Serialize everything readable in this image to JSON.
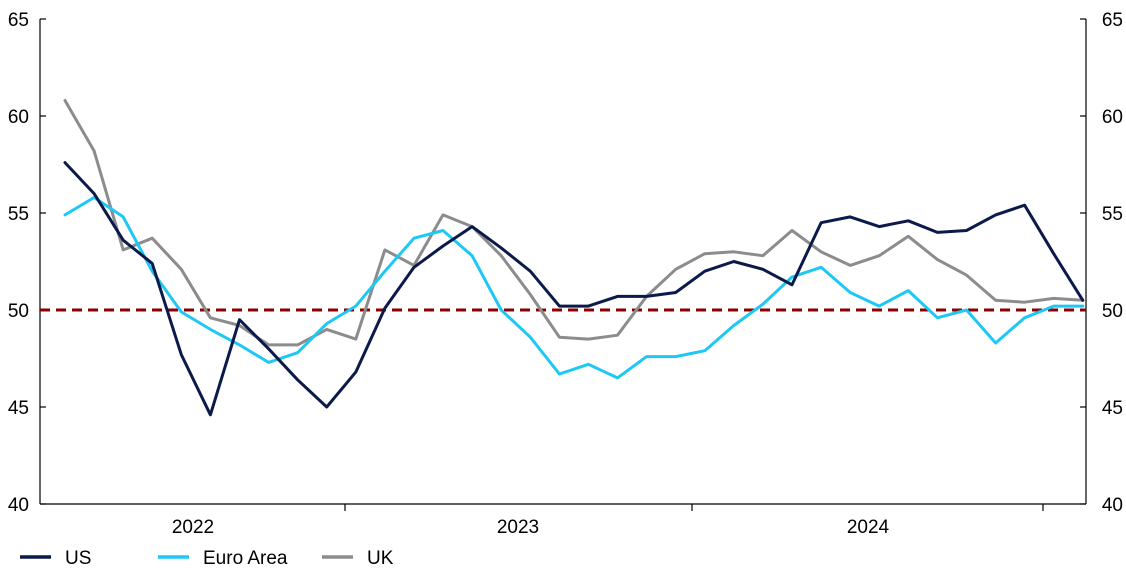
{
  "chart_data": {
    "type": "line",
    "title": "",
    "xlabel": "",
    "ylabel": "",
    "ylim": [
      40,
      65
    ],
    "y_ticks": [
      40,
      45,
      50,
      55,
      60,
      65
    ],
    "y_ticks_right": [
      40,
      45,
      50,
      55,
      60,
      65
    ],
    "x_labels": [
      "2022",
      "2023",
      "2024"
    ],
    "grid": false,
    "legend_position": "bottom-left",
    "reference_line": {
      "value": 50,
      "color": "#8b0000",
      "style": "dashed"
    },
    "x": [
      "2021-11",
      "2021-12",
      "2022-01",
      "2022-02",
      "2022-03",
      "2022-04",
      "2022-05",
      "2022-06",
      "2022-07",
      "2022-08",
      "2022-09",
      "2022-10",
      "2022-11",
      "2022-12",
      "2023-01",
      "2023-02",
      "2023-03",
      "2023-04",
      "2023-05",
      "2023-06",
      "2023-07",
      "2023-08",
      "2023-09",
      "2023-10",
      "2023-11",
      "2023-12",
      "2024-01",
      "2024-02",
      "2024-03",
      "2024-04",
      "2024-05",
      "2024-06",
      "2024-07",
      "2024-08",
      "2024-09",
      "2024-10",
      "2024-11"
    ],
    "series": [
      {
        "name": "US",
        "color": "#0b1a4a",
        "values": [
          57.6,
          56.0,
          53.6,
          52.4,
          47.7,
          44.6,
          49.5,
          48.0,
          46.4,
          45.0,
          46.8,
          50.1,
          52.2,
          53.3,
          54.3,
          53.2,
          52.0,
          50.2,
          50.2,
          50.7,
          50.7,
          50.9,
          52.0,
          52.5,
          52.1,
          51.3,
          54.5,
          54.8,
          54.3,
          54.6,
          54.0,
          54.1,
          54.9,
          55.4,
          52.9,
          50.5,
          null
        ]
      },
      {
        "name": "Euro Area",
        "color": "#1ec8f5",
        "values": [
          54.9,
          55.8,
          54.8,
          52.0,
          49.9,
          49.0,
          48.2,
          47.3,
          47.8,
          49.3,
          50.2,
          52.0,
          53.7,
          54.1,
          52.8,
          50.0,
          48.6,
          46.7,
          47.2,
          46.5,
          47.6,
          47.6,
          47.9,
          49.2,
          50.3,
          51.7,
          52.2,
          50.9,
          50.2,
          51.0,
          49.6,
          50.0,
          48.3,
          49.6,
          50.2,
          50.2,
          null
        ]
      },
      {
        "name": "UK",
        "color": "#8c8c8c",
        "values": [
          60.8,
          58.2,
          53.1,
          53.7,
          52.1,
          49.6,
          49.2,
          48.2,
          48.2,
          49.0,
          48.5,
          53.1,
          52.3,
          54.9,
          54.3,
          52.8,
          50.8,
          48.6,
          48.5,
          48.7,
          50.7,
          52.1,
          52.9,
          53.0,
          52.8,
          54.1,
          53.0,
          52.3,
          52.8,
          53.8,
          52.6,
          51.8,
          50.5,
          50.4,
          50.6,
          50.5,
          null
        ]
      }
    ]
  }
}
